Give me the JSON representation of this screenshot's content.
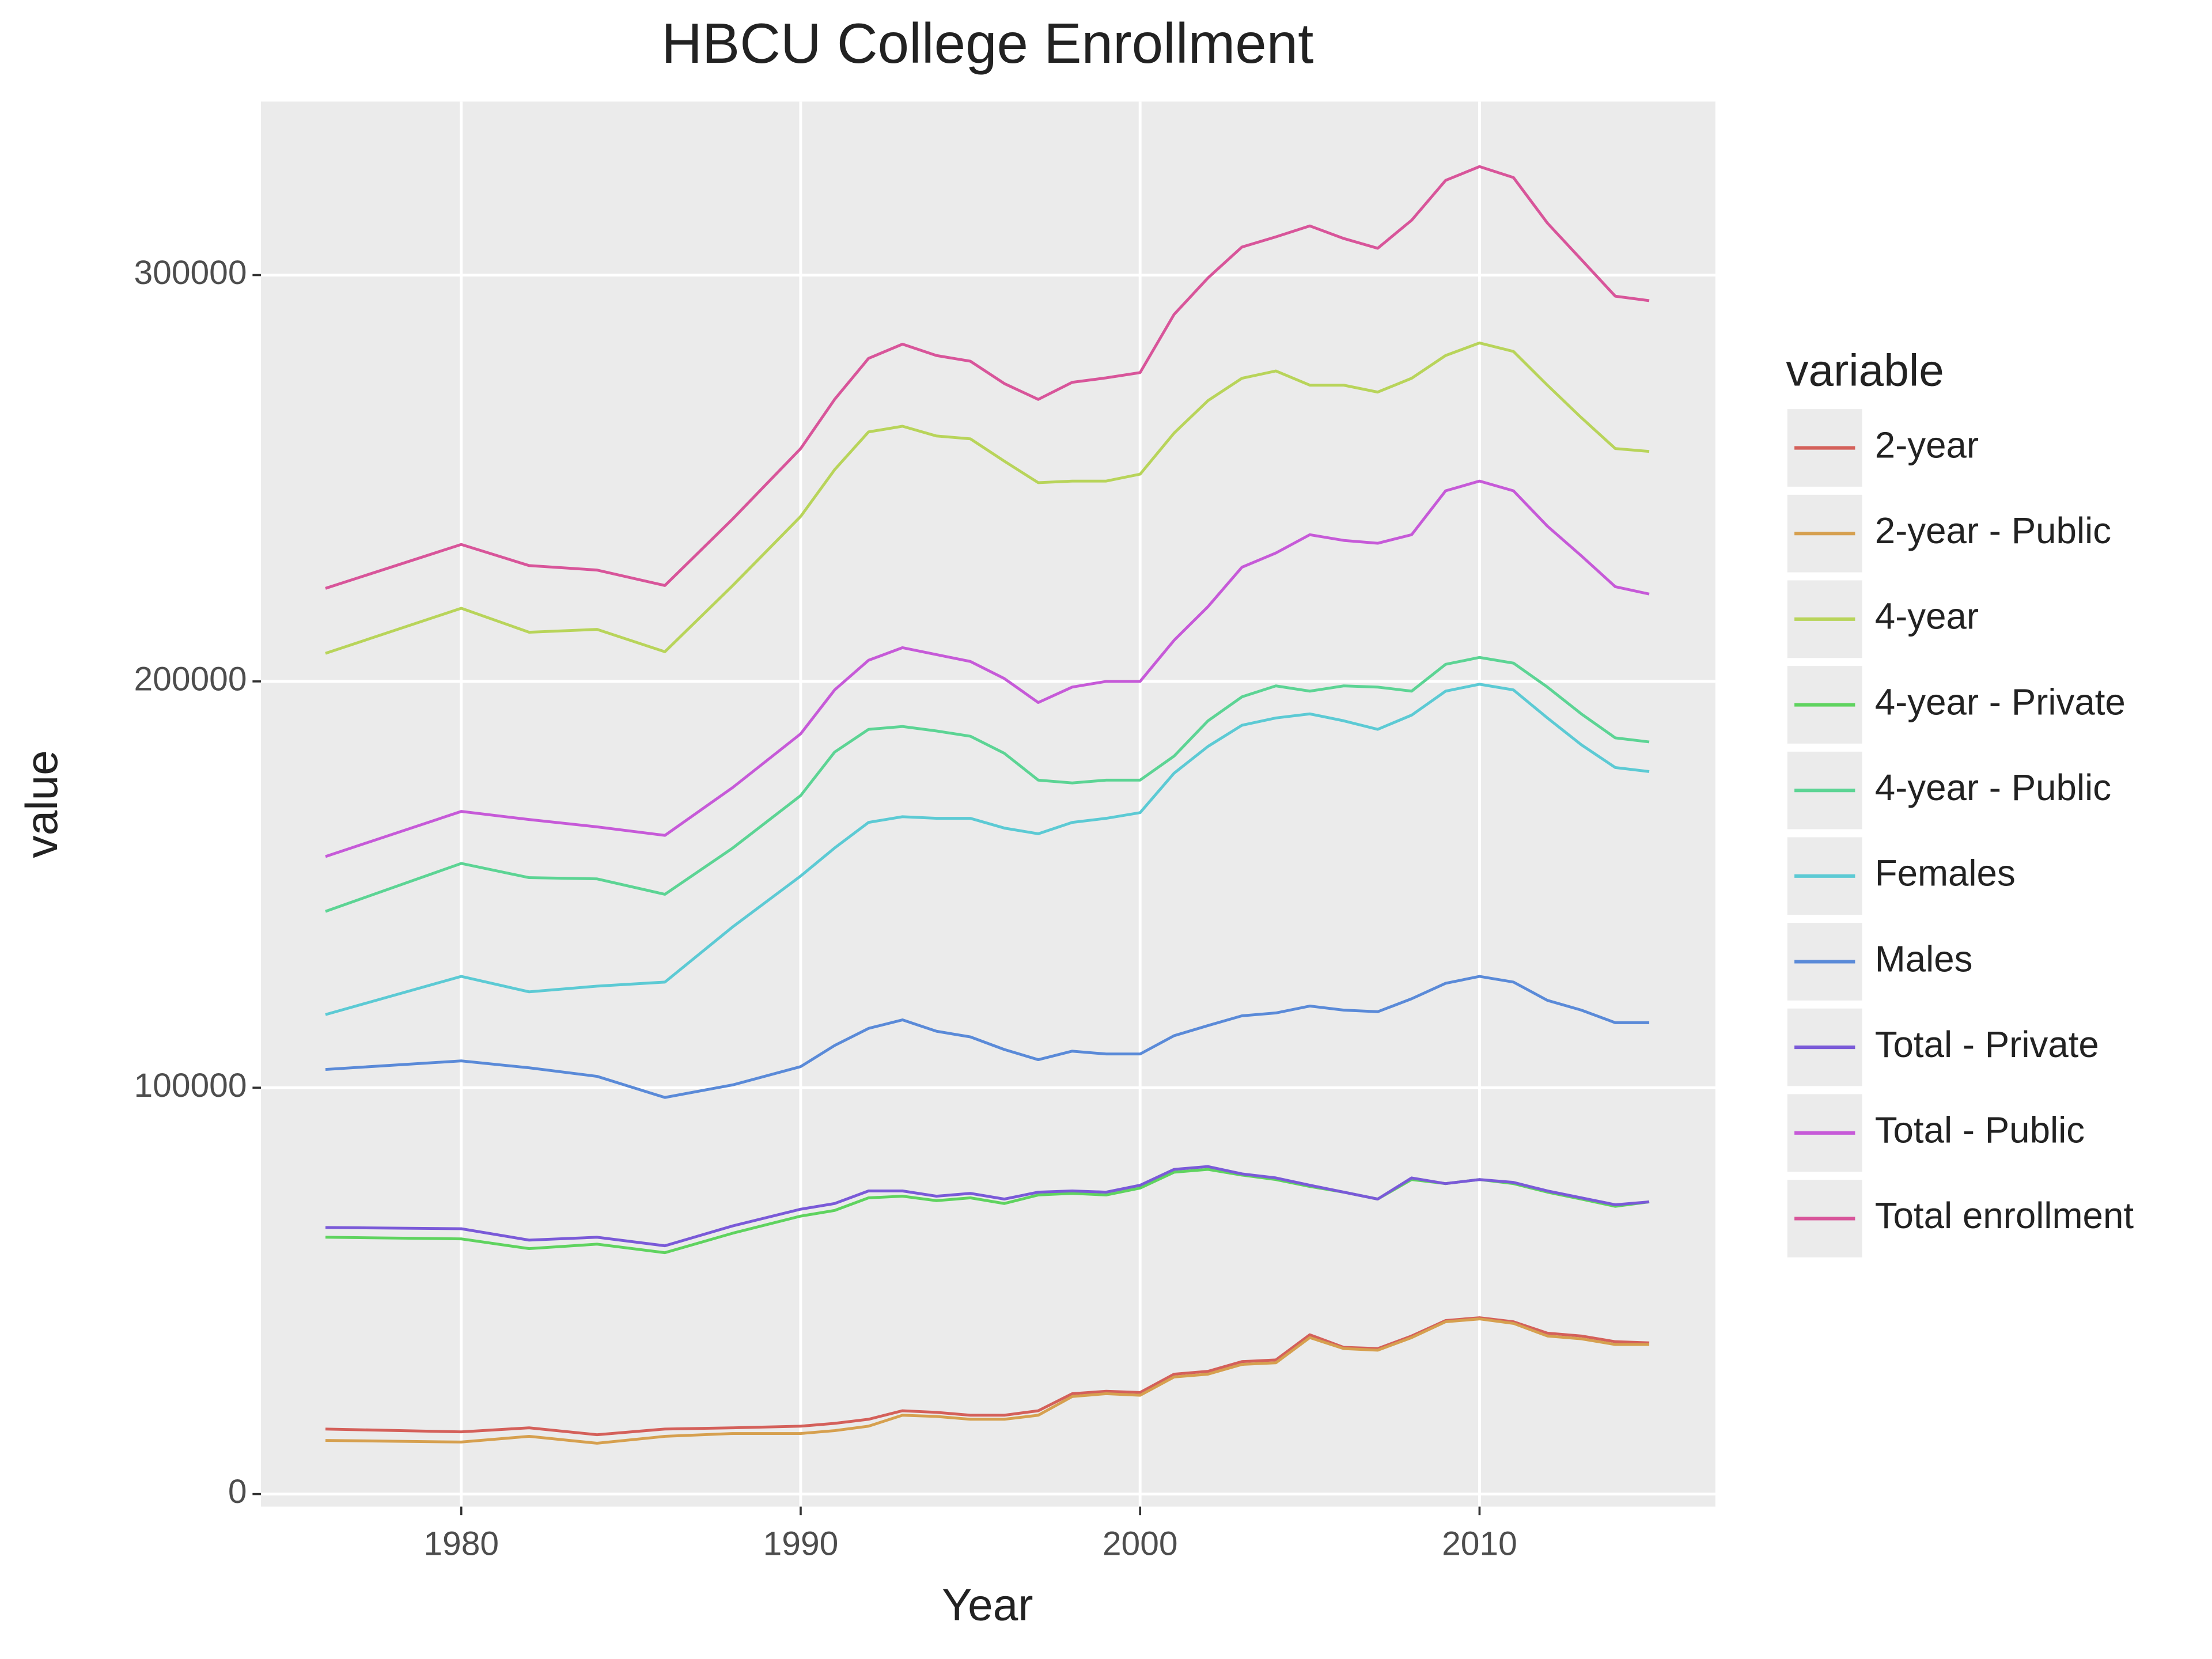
{
  "chart_data": {
    "type": "line",
    "title": "HBCU College Enrollment",
    "x_label": "Year",
    "y_label": "value",
    "legend_title": "variable",
    "x": [
      1976,
      1980,
      1982,
      1984,
      1986,
      1988,
      1990,
      1991,
      1992,
      1993,
      1994,
      1995,
      1996,
      1997,
      1998,
      1999,
      2000,
      2001,
      2002,
      2003,
      2004,
      2005,
      2006,
      2007,
      2008,
      2009,
      2010,
      2011,
      2012,
      2013,
      2014,
      2015
    ],
    "xlim": [
      1974.1,
      2016.95
    ],
    "xticks": [
      1980,
      1990,
      2000,
      2010
    ],
    "ylim": [
      -3100,
      342700
    ],
    "yticks": [
      0,
      100000,
      200000,
      300000
    ],
    "grid": true,
    "legend": "right",
    "series": [
      {
        "name": "2-year",
        "color": "#d4605a",
        "values": [
          16000,
          15300,
          16300,
          14600,
          16000,
          16300,
          16700,
          17400,
          18400,
          20500,
          20100,
          19400,
          19400,
          20500,
          24700,
          25300,
          25000,
          29500,
          30200,
          32600,
          33000,
          39200,
          36100,
          35800,
          38900,
          42700,
          43400,
          42400,
          39600,
          38900,
          37500,
          37200
        ]
      },
      {
        "name": "2-year - Public",
        "color": "#d6a04f",
        "values": [
          13200,
          12800,
          14200,
          12500,
          14200,
          14900,
          14900,
          15600,
          16700,
          19400,
          19100,
          18400,
          18400,
          19400,
          24000,
          24700,
          24300,
          28800,
          29500,
          31900,
          32300,
          38500,
          35800,
          35400,
          38500,
          42400,
          43100,
          42000,
          38900,
          38200,
          36800,
          36800
        ]
      },
      {
        "name": "4-year",
        "color": "#b8d45a",
        "values": [
          206900,
          218000,
          212100,
          212800,
          207300,
          223600,
          240600,
          252100,
          261400,
          262800,
          260400,
          259700,
          254200,
          248900,
          249300,
          249300,
          251000,
          261100,
          269100,
          274600,
          276400,
          272900,
          272900,
          271200,
          274600,
          280200,
          283300,
          281200,
          272900,
          264900,
          257300,
          256600
        ]
      },
      {
        "name": "4-year - Private",
        "color": "#5fd35f",
        "values": [
          63200,
          62800,
          60400,
          61500,
          59400,
          64200,
          68400,
          69800,
          72900,
          73300,
          72200,
          72900,
          71500,
          73600,
          74000,
          73600,
          75300,
          79200,
          79900,
          78500,
          77400,
          75700,
          74300,
          72600,
          77400,
          76400,
          77400,
          76400,
          74300,
          72600,
          70800,
          71900
        ]
      },
      {
        "name": "4-year - Public",
        "color": "#5cd494",
        "values": [
          143400,
          155200,
          151700,
          151400,
          147600,
          159000,
          171900,
          182600,
          188200,
          188900,
          187800,
          186500,
          182300,
          175700,
          175000,
          175700,
          175700,
          181600,
          190300,
          196200,
          198900,
          197600,
          198900,
          198600,
          197600,
          204200,
          205900,
          204500,
          198600,
          192000,
          186100,
          185100
        ]
      },
      {
        "name": "Females",
        "color": "#5ccad4",
        "values": [
          118000,
          127400,
          123600,
          125000,
          126000,
          139600,
          152100,
          159000,
          165300,
          166700,
          166300,
          166300,
          163900,
          162500,
          165300,
          166300,
          167700,
          177400,
          184000,
          189200,
          191000,
          192000,
          190300,
          188200,
          191700,
          197600,
          199300,
          197900,
          191000,
          184400,
          178800,
          177800
        ]
      },
      {
        "name": "Males",
        "color": "#5a8ad8",
        "values": [
          104500,
          106600,
          104900,
          102800,
          97600,
          100700,
          105200,
          110400,
          114600,
          116700,
          113900,
          112500,
          109400,
          106900,
          109000,
          108300,
          108300,
          112800,
          115300,
          117700,
          118400,
          120100,
          119100,
          118700,
          121900,
          125700,
          127400,
          126000,
          121500,
          119100,
          116000,
          116000
        ]
      },
      {
        "name": "Total - Private",
        "color": "#7a5ad8",
        "values": [
          65600,
          65300,
          62500,
          63200,
          61100,
          66000,
          70100,
          71500,
          74600,
          74600,
          73300,
          74000,
          72600,
          74300,
          74600,
          74300,
          76000,
          79900,
          80600,
          78800,
          77800,
          76000,
          74300,
          72600,
          77800,
          76400,
          77400,
          76700,
          74600,
          72900,
          71200,
          71900
        ]
      },
      {
        "name": "Total - Public",
        "color": "#c65ad8",
        "values": [
          156900,
          168000,
          166000,
          164200,
          162100,
          173900,
          187100,
          197900,
          205200,
          208300,
          206600,
          204900,
          200700,
          194800,
          198600,
          200000,
          200000,
          210100,
          218400,
          228100,
          231600,
          236100,
          234700,
          234000,
          236100,
          246900,
          249300,
          246900,
          238200,
          230900,
          223300,
          221500
        ]
      },
      {
        "name": "Total enrollment",
        "color": "#d8559a",
        "values": [
          222900,
          233700,
          228500,
          227400,
          223600,
          240000,
          257300,
          269400,
          279500,
          283000,
          280200,
          278800,
          273300,
          269400,
          273600,
          274700,
          276000,
          290300,
          299300,
          306900,
          309400,
          312100,
          309000,
          306600,
          313500,
          323300,
          326700,
          324000,
          312800,
          303800,
          294800,
          293700
        ]
      }
    ]
  }
}
